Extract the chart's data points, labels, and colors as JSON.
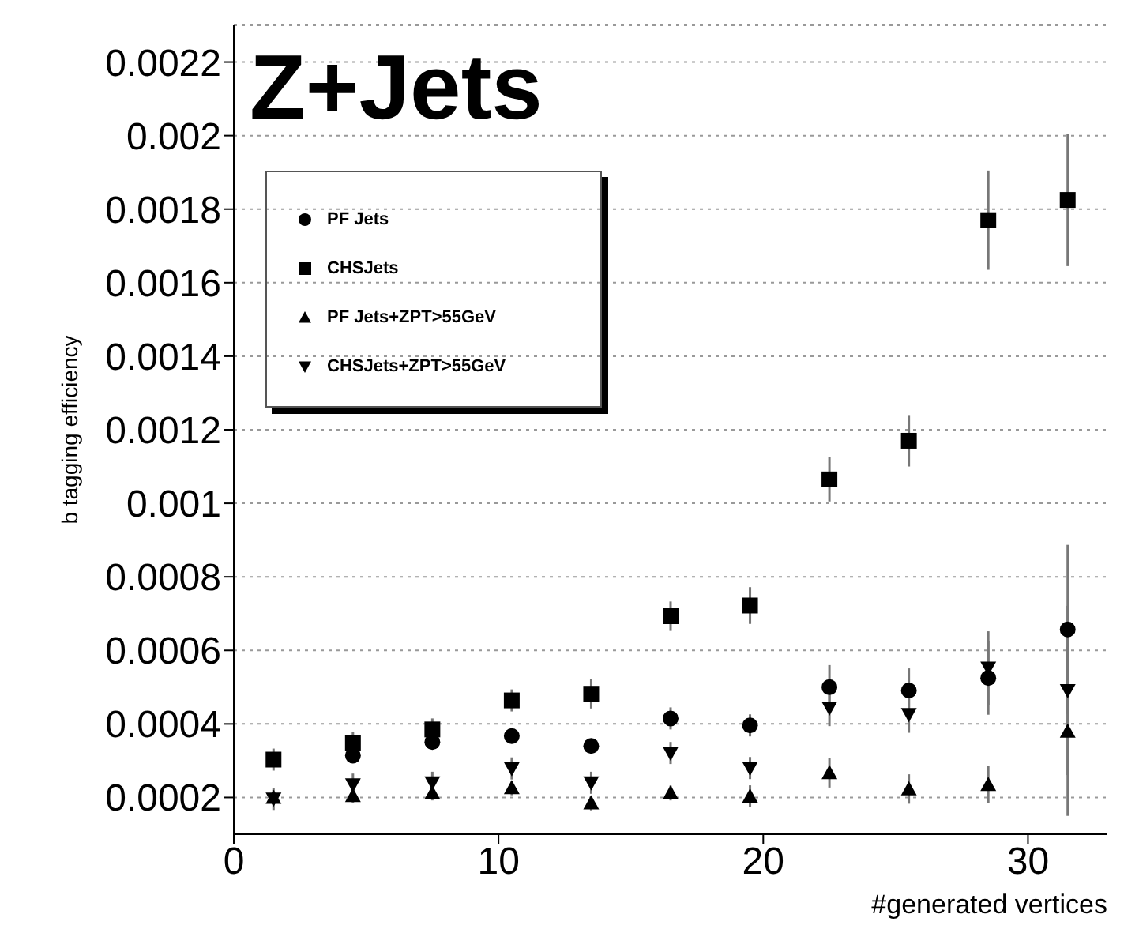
{
  "chart_data": {
    "type": "scatter",
    "title": "Z+Jets",
    "xlabel": "#generated vertices",
    "ylabel": "b tagging efficiency",
    "xlim": [
      0,
      33
    ],
    "xticks": [
      0,
      10,
      20,
      30
    ],
    "ylim": [
      0.0001,
      0.0023
    ],
    "yticks": [
      0.0002,
      0.0004,
      0.0006,
      0.0008,
      0.001,
      0.0012,
      0.0014,
      0.0016,
      0.0018,
      0.002,
      0.0022
    ],
    "grid": "y",
    "legend": "top left",
    "x": [
      1.5,
      4.5,
      7.5,
      10.5,
      13.5,
      16.5,
      19.5,
      22.5,
      25.5,
      28.5,
      31.5
    ],
    "series": [
      {
        "name": "PF Jets",
        "color": "#000000",
        "marker": "circle",
        "values": [
          null,
          0.000314,
          0.000351,
          0.000367,
          0.00034,
          0.000415,
          0.000396,
          0.0005,
          0.000491,
          0.000525,
          0.000657
        ],
        "errors": [
          null,
          2e-05,
          2e-05,
          2e-05,
          2e-05,
          3e-05,
          3e-05,
          6e-05,
          6e-05,
          0.0001,
          0.00023
        ]
      },
      {
        "name": "CHSJets",
        "color": "#000000",
        "marker": "square",
        "values": [
          0.000303,
          0.000348,
          0.000385,
          0.000464,
          0.000482,
          0.000693,
          0.000722,
          0.001065,
          0.00117,
          0.00177,
          0.001825
        ],
        "errors": [
          3e-05,
          3e-05,
          3e-05,
          3e-05,
          4e-05,
          4e-05,
          5e-05,
          6e-05,
          7e-05,
          0.000135,
          0.00018
        ]
      },
      {
        "name": "PF Jets+ZPT>55GeV",
        "color": "#000000",
        "marker": "triangle",
        "values": [
          0.0002,
          0.000205,
          0.000212,
          0.000226,
          0.000185,
          0.000212,
          0.000203,
          0.000267,
          0.000223,
          0.000235,
          0.00038
        ],
        "errors": [
          2e-05,
          2e-05,
          2e-05,
          2e-05,
          2e-05,
          2e-05,
          3e-05,
          4e-05,
          4e-05,
          5e-05,
          0.00023
        ]
      },
      {
        "name": "CHSJets+ZPT>55GeV",
        "color": "#000000",
        "marker": "triangle-down",
        "values": [
          0.000196,
          0.000235,
          0.00024,
          0.000279,
          0.00024,
          0.000321,
          0.00028,
          0.000444,
          0.000426,
          0.000552,
          0.000491
        ],
        "errors": [
          3e-05,
          3e-05,
          3e-05,
          3e-05,
          3e-05,
          3e-05,
          3e-05,
          5e-05,
          5e-05,
          0.0001,
          0.00023
        ]
      }
    ]
  }
}
